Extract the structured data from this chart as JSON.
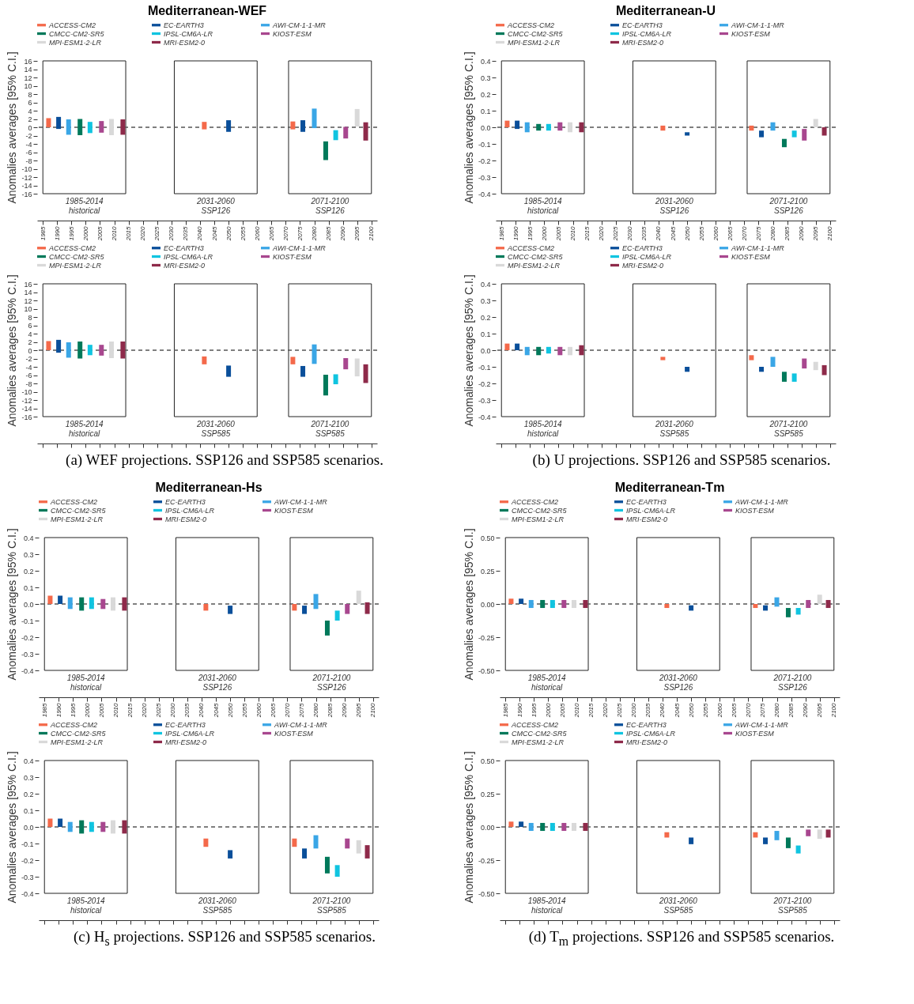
{
  "chart_data": [
    {
      "type": "bar",
      "title": "Mediterranean-WEF",
      "ylabel": "Anomalies averages [95% C.I.]",
      "xlim": [
        1983,
        2102
      ],
      "xticks": [
        1985,
        1990,
        1995,
        2000,
        2005,
        2010,
        2015,
        2020,
        2025,
        2030,
        2035,
        2040,
        2045,
        2050,
        2055,
        2060,
        2065,
        2070,
        2075,
        2080,
        2085,
        2090,
        2095,
        2100
      ],
      "ylim": [
        -16,
        16
      ],
      "yticks": [
        -16,
        -14,
        -12,
        -10,
        -8,
        -6,
        -4,
        -2,
        0,
        2,
        4,
        6,
        8,
        10,
        12,
        14,
        16
      ],
      "legend": "top",
      "bands": [
        {
          "axis": "x",
          "from": 1985,
          "to": 2014,
          "label": "1985-2014\nhistorical"
        },
        {
          "axis": "x",
          "from": 2031,
          "to": 2060,
          "label": "2031-2060\nSSP126"
        },
        {
          "axis": "x",
          "from": 2071,
          "to": 2100,
          "label": "2071-2100\nSSP126"
        }
      ],
      "ref_lines": [
        {
          "axis": "y",
          "value": 0,
          "line_style": "dashed"
        }
      ],
      "series": [
        {
          "name": "ACCESS-CM2",
          "color": "#f4694a",
          "x": [
            1987,
            2041.5,
            2072.5
          ],
          "base": [
            0,
            -0.5,
            -0.5
          ],
          "values": [
            2.2,
            1.8,
            1.9
          ]
        },
        {
          "name": "EC-EARTH3",
          "color": "#0a4f9a",
          "x": [
            1990.5,
            2050,
            2076
          ],
          "base": [
            -0.4,
            -1.1,
            -1.1
          ],
          "values": [
            2.9,
            2.8,
            2.8
          ]
        },
        {
          "name": "AWI-CM-1-1-MR",
          "color": "#3aa6e6",
          "x": [
            1994,
            2080
          ],
          "base": [
            -1.8,
            -0.2
          ],
          "values": [
            3.7,
            4.7
          ]
        },
        {
          "name": "CMCC-CM2-SR5",
          "color": "#00795a",
          "x": [
            1998,
            2084
          ],
          "base": [
            -1.9,
            -7.9
          ],
          "values": [
            3.9,
            4.5
          ]
        },
        {
          "name": "IPSL-CM6A-LR",
          "color": "#10c4e0",
          "x": [
            2001.5,
            2087.5
          ],
          "base": [
            -1.4,
            -3.1
          ],
          "values": [
            2.7,
            2.4
          ]
        },
        {
          "name": "KIOST-ESM",
          "color": "#a8478f",
          "x": [
            2005.5,
            2091
          ],
          "base": [
            -1.3,
            -2.7
          ],
          "values": [
            2.8,
            2.8
          ]
        },
        {
          "name": "MPI-ESM1-2-LR",
          "color": "#d9d9d9",
          "x": [
            2009,
            2095
          ],
          "base": [
            -1.9,
            0.2
          ],
          "values": [
            3.9,
            4.2
          ]
        },
        {
          "name": "MRI-ESM2-0",
          "color": "#8e2a4a",
          "x": [
            2013,
            2098
          ],
          "base": [
            -1.8,
            -3.2
          ],
          "values": [
            3.7,
            4.4
          ]
        }
      ]
    },
    {
      "type": "bar",
      "ylabel": "Anomalies averages [95% C.I.]",
      "xlim": [
        1983,
        2102
      ],
      "xticks": [
        1985,
        1990,
        1995,
        2000,
        2005,
        2010,
        2015,
        2020,
        2025,
        2030,
        2035,
        2040,
        2045,
        2050,
        2055,
        2060,
        2065,
        2070,
        2075,
        2080,
        2085,
        2090,
        2095,
        2100
      ],
      "ylim": [
        -16,
        16
      ],
      "yticks": [
        -16,
        -14,
        -12,
        -10,
        -8,
        -6,
        -4,
        -2,
        0,
        2,
        4,
        6,
        8,
        10,
        12,
        14,
        16
      ],
      "legend": "top",
      "tick_labels": "y",
      "annotations": [
        "(a) WEF projections. SSP126 and SSP585 scenarios."
      ],
      "bands": [
        {
          "axis": "x",
          "from": 1985,
          "to": 2014,
          "label": "1985-2014\nhistorical"
        },
        {
          "axis": "x",
          "from": 2031,
          "to": 2060,
          "label": "2031-2060\nSSP585"
        },
        {
          "axis": "x",
          "from": 2071,
          "to": 2100,
          "label": "2071-2100\nSSP585"
        }
      ],
      "ref_lines": [
        {
          "axis": "y",
          "value": 0,
          "line_style": "dashed"
        }
      ],
      "series": [
        {
          "name": "ACCESS-CM2",
          "color": "#f4694a",
          "x": [
            1987,
            2041.5,
            2072.5
          ],
          "base": [
            0,
            -3.4,
            -3.4
          ],
          "values": [
            2.2,
            1.9,
            1.8
          ]
        },
        {
          "name": "EC-EARTH3",
          "color": "#0a4f9a",
          "x": [
            1990.5,
            2050,
            2076
          ],
          "base": [
            -0.6,
            -6.4,
            -6.4
          ],
          "values": [
            3.1,
            2.7,
            2.6
          ]
        },
        {
          "name": "AWI-CM-1-1-MR",
          "color": "#3aa6e6",
          "x": [
            1994,
            2080
          ],
          "base": [
            -1.8,
            -3.3
          ],
          "values": [
            3.7,
            4.7
          ]
        },
        {
          "name": "CMCC-CM2-SR5",
          "color": "#00795a",
          "x": [
            1998,
            2084
          ],
          "base": [
            -2,
            -10.9
          ],
          "values": [
            4.1,
            5
          ]
        },
        {
          "name": "IPSL-CM6A-LR",
          "color": "#10c4e0",
          "x": [
            2001.5,
            2087.5
          ],
          "base": [
            -1.2,
            -8.2
          ],
          "values": [
            2.5,
            2.4
          ]
        },
        {
          "name": "KIOST-ESM",
          "color": "#a8478f",
          "x": [
            2005.5,
            2091
          ],
          "base": [
            -1.3,
            -4.6
          ],
          "values": [
            2.6,
            2.7
          ]
        },
        {
          "name": "MPI-ESM1-2-LR",
          "color": "#d9d9d9",
          "x": [
            2009,
            2095
          ],
          "base": [
            -1.9,
            -6.3
          ],
          "values": [
            4,
            4.3
          ]
        },
        {
          "name": "MRI-ESM2-0",
          "color": "#8e2a4a",
          "x": [
            2013,
            2098
          ],
          "base": [
            -2,
            -7.9
          ],
          "values": [
            4.1,
            4.5
          ]
        }
      ]
    },
    {
      "type": "bar",
      "title": "Mediterranean-U",
      "ylabel": "Anomalies averages [95% C.I.]",
      "xlim": [
        1983,
        2102
      ],
      "xticks": [
        1985,
        1990,
        1995,
        2000,
        2005,
        2010,
        2015,
        2020,
        2025,
        2030,
        2035,
        2040,
        2045,
        2050,
        2055,
        2060,
        2065,
        2070,
        2075,
        2080,
        2085,
        2090,
        2095,
        2100
      ],
      "ylim": [
        -0.4,
        0.4
      ],
      "yticks": [
        -0.4,
        -0.3,
        -0.2,
        -0.1,
        {
          "value": 0,
          "label": "0.0"
        },
        0.1,
        0.2,
        0.3,
        0.4
      ],
      "legend": "top",
      "bands": [
        {
          "axis": "x",
          "from": 1985,
          "to": 2014,
          "label": "1985-2014\nhistorical"
        },
        {
          "axis": "x",
          "from": 2031,
          "to": 2060,
          "label": "2031-2060\nSSP126"
        },
        {
          "axis": "x",
          "from": 2071,
          "to": 2100,
          "label": "2071-2100\nSSP126"
        }
      ],
      "ref_lines": [
        {
          "axis": "y",
          "value": 0,
          "line_style": "dashed"
        }
      ],
      "series": [
        {
          "name": "ACCESS-CM2",
          "color": "#f4694a",
          "x": [
            1987,
            2041.5,
            2072.5
          ],
          "base": [
            0,
            -0.02,
            -0.02
          ],
          "values": [
            0.04,
            0.03,
            0.03
          ]
        },
        {
          "name": "EC-EARTH3",
          "color": "#0a4f9a",
          "x": [
            1990.5,
            2050,
            2076
          ],
          "base": [
            -0.01,
            -0.05,
            -0.06
          ],
          "values": [
            0.05,
            0.02,
            0.04
          ]
        },
        {
          "name": "AWI-CM-1-1-MR",
          "color": "#3aa6e6",
          "x": [
            1994,
            2080
          ],
          "base": [
            -0.03,
            -0.02
          ],
          "values": [
            0.06,
            0.05
          ]
        },
        {
          "name": "CMCC-CM2-SR5",
          "color": "#00795a",
          "x": [
            1998,
            2084
          ],
          "base": [
            -0.02,
            -0.12
          ],
          "values": [
            0.04,
            0.05
          ]
        },
        {
          "name": "IPSL-CM6A-LR",
          "color": "#10c4e0",
          "x": [
            2001.5,
            2087.5
          ],
          "base": [
            -0.02,
            -0.06
          ],
          "values": [
            0.04,
            0.04
          ]
        },
        {
          "name": "KIOST-ESM",
          "color": "#a8478f",
          "x": [
            2005.5,
            2091
          ],
          "base": [
            -0.02,
            -0.08
          ],
          "values": [
            0.05,
            0.07
          ]
        },
        {
          "name": "MPI-ESM1-2-LR",
          "color": "#d9d9d9",
          "x": [
            2009,
            2095
          ],
          "base": [
            -0.03,
            0
          ],
          "values": [
            0.06,
            0.05
          ]
        },
        {
          "name": "MRI-ESM2-0",
          "color": "#8e2a4a",
          "x": [
            2013,
            2098
          ],
          "base": [
            -0.03,
            -0.05
          ],
          "values": [
            0.06,
            0.05
          ]
        }
      ]
    },
    {
      "type": "bar",
      "ylabel": "Anomalies averages [95% C.I.]",
      "xlim": [
        1983,
        2102
      ],
      "xticks": [
        1985,
        1990,
        1995,
        2000,
        2005,
        2010,
        2015,
        2020,
        2025,
        2030,
        2035,
        2040,
        2045,
        2050,
        2055,
        2060,
        2065,
        2070,
        2075,
        2080,
        2085,
        2090,
        2095,
        2100
      ],
      "ylim": [
        -0.4,
        0.4
      ],
      "yticks": [
        -0.4,
        -0.3,
        -0.2,
        -0.1,
        {
          "value": 0,
          "label": "0.0"
        },
        0.1,
        0.2,
        0.3,
        0.4
      ],
      "legend": "top",
      "tick_labels": "y",
      "annotations": [
        "(b) U projections. SSP126 and SSP585 scenarios."
      ],
      "bands": [
        {
          "axis": "x",
          "from": 1985,
          "to": 2014,
          "label": "1985-2014\nhistorical"
        },
        {
          "axis": "x",
          "from": 2031,
          "to": 2060,
          "label": "2031-2060\nSSP585"
        },
        {
          "axis": "x",
          "from": 2071,
          "to": 2100,
          "label": "2071-2100\nSSP585"
        }
      ],
      "ref_lines": [
        {
          "axis": "y",
          "value": 0,
          "line_style": "dashed"
        }
      ],
      "series": [
        {
          "name": "ACCESS-CM2",
          "color": "#f4694a",
          "x": [
            1987,
            2041.5,
            2072.5
          ],
          "base": [
            0,
            -0.06,
            -0.06
          ],
          "values": [
            0.04,
            0.02,
            0.03
          ]
        },
        {
          "name": "EC-EARTH3",
          "color": "#0a4f9a",
          "x": [
            1990.5,
            2050,
            2076
          ],
          "base": [
            0,
            -0.13,
            -0.13
          ],
          "values": [
            0.04,
            0.03,
            0.03
          ]
        },
        {
          "name": "AWI-CM-1-1-MR",
          "color": "#3aa6e6",
          "x": [
            1994,
            2080
          ],
          "base": [
            -0.03,
            -0.1
          ],
          "values": [
            0.05,
            0.06
          ]
        },
        {
          "name": "CMCC-CM2-SR5",
          "color": "#00795a",
          "x": [
            1998,
            2084
          ],
          "base": [
            -0.03,
            -0.19
          ],
          "values": [
            0.05,
            0.06
          ]
        },
        {
          "name": "IPSL-CM6A-LR",
          "color": "#10c4e0",
          "x": [
            2001.5,
            2087.5
          ],
          "base": [
            -0.02,
            -0.19
          ],
          "values": [
            0.04,
            0.05
          ]
        },
        {
          "name": "KIOST-ESM",
          "color": "#a8478f",
          "x": [
            2005.5,
            2091
          ],
          "base": [
            -0.03,
            -0.11
          ],
          "values": [
            0.05,
            0.06
          ]
        },
        {
          "name": "MPI-ESM1-2-LR",
          "color": "#d9d9d9",
          "x": [
            2009,
            2095
          ],
          "base": [
            -0.03,
            -0.12
          ],
          "values": [
            0.05,
            0.05
          ]
        },
        {
          "name": "MRI-ESM2-0",
          "color": "#8e2a4a",
          "x": [
            2013,
            2098
          ],
          "base": [
            -0.03,
            -0.15
          ],
          "values": [
            0.06,
            0.06
          ]
        }
      ]
    },
    {
      "type": "bar",
      "title": "Mediterranean-Hs",
      "ylabel": "Anomalies averages [95% C.I.]",
      "xlim": [
        1983,
        2102
      ],
      "xticks": [
        1985,
        1990,
        1995,
        2000,
        2005,
        2010,
        2015,
        2020,
        2025,
        2030,
        2035,
        2040,
        2045,
        2050,
        2055,
        2060,
        2065,
        2070,
        2075,
        2080,
        2085,
        2090,
        2095,
        2100
      ],
      "ylim": [
        -0.4,
        0.4
      ],
      "yticks": [
        -0.4,
        -0.3,
        -0.2,
        -0.1,
        {
          "value": 0,
          "label": "0.0"
        },
        0.1,
        0.2,
        0.3,
        0.4
      ],
      "legend": "top",
      "bands": [
        {
          "axis": "x",
          "from": 1985,
          "to": 2014,
          "label": "1985-2014\nhistorical"
        },
        {
          "axis": "x",
          "from": 2031,
          "to": 2060,
          "label": "2031-2060\nSSP126"
        },
        {
          "axis": "x",
          "from": 2071,
          "to": 2100,
          "label": "2071-2100\nSSP126"
        }
      ],
      "ref_lines": [
        {
          "axis": "y",
          "value": 0,
          "line_style": "dashed"
        }
      ],
      "series": [
        {
          "name": "ACCESS-CM2",
          "color": "#f4694a",
          "x": [
            1987,
            2041.5,
            2072.5
          ],
          "base": [
            0,
            -0.04,
            -0.04
          ],
          "values": [
            0.05,
            0.04,
            0.04
          ]
        },
        {
          "name": "EC-EARTH3",
          "color": "#0a4f9a",
          "x": [
            1990.5,
            2050,
            2076
          ],
          "base": [
            0,
            -0.06,
            -0.06
          ],
          "values": [
            0.05,
            0.05,
            0.05
          ]
        },
        {
          "name": "AWI-CM-1-1-MR",
          "color": "#3aa6e6",
          "x": [
            1994,
            2080
          ],
          "base": [
            -0.03,
            -0.03
          ],
          "values": [
            0.07,
            0.09
          ]
        },
        {
          "name": "CMCC-CM2-SR5",
          "color": "#00795a",
          "x": [
            1998,
            2084
          ],
          "base": [
            -0.04,
            -0.19
          ],
          "values": [
            0.08,
            0.09
          ]
        },
        {
          "name": "IPSL-CM6A-LR",
          "color": "#10c4e0",
          "x": [
            2001.5,
            2087.5
          ],
          "base": [
            -0.03,
            -0.1
          ],
          "values": [
            0.07,
            0.06
          ]
        },
        {
          "name": "KIOST-ESM",
          "color": "#a8478f",
          "x": [
            2005.5,
            2091
          ],
          "base": [
            -0.03,
            -0.06
          ],
          "values": [
            0.06,
            0.06
          ]
        },
        {
          "name": "MPI-ESM1-2-LR",
          "color": "#d9d9d9",
          "x": [
            2009,
            2095
          ],
          "base": [
            -0.04,
            0
          ],
          "values": [
            0.08,
            0.08
          ]
        },
        {
          "name": "MRI-ESM2-0",
          "color": "#8e2a4a",
          "x": [
            2013,
            2098
          ],
          "base": [
            -0.04,
            -0.06
          ],
          "values": [
            0.08,
            0.07
          ]
        }
      ]
    },
    {
      "type": "bar",
      "ylabel": "Anomalies averages [95% C.I.]",
      "xlim": [
        1983,
        2102
      ],
      "xticks": [
        1985,
        1990,
        1995,
        2000,
        2005,
        2010,
        2015,
        2020,
        2025,
        2030,
        2035,
        2040,
        2045,
        2050,
        2055,
        2060,
        2065,
        2070,
        2075,
        2080,
        2085,
        2090,
        2095,
        2100
      ],
      "ylim": [
        -0.4,
        0.4
      ],
      "yticks": [
        -0.4,
        -0.3,
        -0.2,
        -0.1,
        {
          "value": 0,
          "label": "0.0"
        },
        0.1,
        0.2,
        0.3,
        0.4
      ],
      "legend": "top",
      "tick_labels": "y",
      "annotations": [
        "(c) H$_{s}$ projections. SSP126 and SSP585 scenarios."
      ],
      "bands": [
        {
          "axis": "x",
          "from": 1985,
          "to": 2014,
          "label": "1985-2014\nhistorical"
        },
        {
          "axis": "x",
          "from": 2031,
          "to": 2060,
          "label": "2031-2060\nSSP585"
        },
        {
          "axis": "x",
          "from": 2071,
          "to": 2100,
          "label": "2071-2100\nSSP585"
        }
      ],
      "ref_lines": [
        {
          "axis": "y",
          "value": 0,
          "line_style": "dashed"
        }
      ],
      "series": [
        {
          "name": "ACCESS-CM2",
          "color": "#f4694a",
          "x": [
            1987,
            2041.5,
            2072.5
          ],
          "base": [
            0,
            -0.12,
            -0.12
          ],
          "values": [
            0.05,
            0.05,
            0.05
          ]
        },
        {
          "name": "EC-EARTH3",
          "color": "#0a4f9a",
          "x": [
            1990.5,
            2050,
            2076
          ],
          "base": [
            0,
            -0.19,
            -0.19
          ],
          "values": [
            0.05,
            0.05,
            0.06
          ]
        },
        {
          "name": "AWI-CM-1-1-MR",
          "color": "#3aa6e6",
          "x": [
            1994,
            2080
          ],
          "base": [
            -0.03,
            -0.13
          ],
          "values": [
            0.06,
            0.08
          ]
        },
        {
          "name": "CMCC-CM2-SR5",
          "color": "#00795a",
          "x": [
            1998,
            2084
          ],
          "base": [
            -0.04,
            -0.28
          ],
          "values": [
            0.08,
            0.1
          ]
        },
        {
          "name": "IPSL-CM6A-LR",
          "color": "#10c4e0",
          "x": [
            2001.5,
            2087.5
          ],
          "base": [
            -0.03,
            -0.3
          ],
          "values": [
            0.06,
            0.07
          ]
        },
        {
          "name": "KIOST-ESM",
          "color": "#a8478f",
          "x": [
            2005.5,
            2091
          ],
          "base": [
            -0.03,
            -0.13
          ],
          "values": [
            0.06,
            0.06
          ]
        },
        {
          "name": "MPI-ESM1-2-LR",
          "color": "#d9d9d9",
          "x": [
            2009,
            2095
          ],
          "base": [
            -0.04,
            -0.16
          ],
          "values": [
            0.08,
            0.08
          ]
        },
        {
          "name": "MRI-ESM2-0",
          "color": "#8e2a4a",
          "x": [
            2013,
            2098
          ],
          "base": [
            -0.04,
            -0.19
          ],
          "values": [
            0.08,
            0.08
          ]
        }
      ]
    },
    {
      "type": "bar",
      "title": "Mediterranean-Tm",
      "ylabel": "Anomalies averages [95% C.I.]",
      "xlim": [
        1983,
        2102
      ],
      "xticks": [
        1985,
        1990,
        1995,
        2000,
        2005,
        2010,
        2015,
        2020,
        2025,
        2030,
        2035,
        2040,
        2045,
        2050,
        2055,
        2060,
        2065,
        2070,
        2075,
        2080,
        2085,
        2090,
        2095,
        2100
      ],
      "ylim": [
        -0.5,
        0.5
      ],
      "yticks": [
        {
          "value": -0.5,
          "label": "-0.50"
        },
        -0.25,
        {
          "value": 0,
          "label": "0.00"
        },
        0.25,
        {
          "value": 0.5,
          "label": "0.50"
        }
      ],
      "legend": "top",
      "bands": [
        {
          "axis": "x",
          "from": 1985,
          "to": 2014,
          "label": "1985-2014\nhistorical"
        },
        {
          "axis": "x",
          "from": 2031,
          "to": 2060,
          "label": "2031-2060\nSSP126"
        },
        {
          "axis": "x",
          "from": 2071,
          "to": 2100,
          "label": "2071-2100\nSSP126"
        }
      ],
      "ref_lines": [
        {
          "axis": "y",
          "value": 0,
          "line_style": "dashed"
        }
      ],
      "series": [
        {
          "name": "ACCESS-CM2",
          "color": "#f4694a",
          "x": [
            1987,
            2041.5,
            2072.5
          ],
          "base": [
            0,
            -0.03,
            -0.03
          ],
          "values": [
            0.04,
            0.03,
            0.03
          ]
        },
        {
          "name": "EC-EARTH3",
          "color": "#0a4f9a",
          "x": [
            1990.5,
            2050,
            2076
          ],
          "base": [
            0,
            -0.05,
            -0.05
          ],
          "values": [
            0.04,
            0.04,
            0.04
          ]
        },
        {
          "name": "AWI-CM-1-1-MR",
          "color": "#3aa6e6",
          "x": [
            1994,
            2080
          ],
          "base": [
            -0.03,
            -0.02
          ],
          "values": [
            0.06,
            0.07
          ]
        },
        {
          "name": "CMCC-CM2-SR5",
          "color": "#00795a",
          "x": [
            1998,
            2084
          ],
          "base": [
            -0.03,
            -0.1
          ],
          "values": [
            0.06,
            0.07
          ]
        },
        {
          "name": "IPSL-CM6A-LR",
          "color": "#10c4e0",
          "x": [
            2001.5,
            2087.5
          ],
          "base": [
            -0.03,
            -0.08
          ],
          "values": [
            0.06,
            0.05
          ]
        },
        {
          "name": "KIOST-ESM",
          "color": "#a8478f",
          "x": [
            2005.5,
            2091
          ],
          "base": [
            -0.03,
            -0.03
          ],
          "values": [
            0.06,
            0.06
          ]
        },
        {
          "name": "MPI-ESM1-2-LR",
          "color": "#d9d9d9",
          "x": [
            2009,
            2095
          ],
          "base": [
            -0.03,
            0
          ],
          "values": [
            0.06,
            0.07
          ]
        },
        {
          "name": "MRI-ESM2-0",
          "color": "#8e2a4a",
          "x": [
            2013,
            2098
          ],
          "base": [
            -0.03,
            -0.03
          ],
          "values": [
            0.06,
            0.06
          ]
        }
      ]
    },
    {
      "type": "bar",
      "ylabel": "Anomalies averages [95% C.I.]",
      "xlim": [
        1983,
        2102
      ],
      "xticks": [
        1985,
        1990,
        1995,
        2000,
        2005,
        2010,
        2015,
        2020,
        2025,
        2030,
        2035,
        2040,
        2045,
        2050,
        2055,
        2060,
        2065,
        2070,
        2075,
        2080,
        2085,
        2090,
        2095,
        2100
      ],
      "ylim": [
        -0.5,
        0.5
      ],
      "yticks": [
        {
          "value": -0.5,
          "label": "-0.50"
        },
        -0.25,
        {
          "value": 0,
          "label": "0.00"
        },
        0.25,
        {
          "value": 0.5,
          "label": "0.50"
        }
      ],
      "legend": "top",
      "tick_labels": "y",
      "annotations": [
        "(d) T$_{m}$ projections. SSP126 and SSP585 scenarios."
      ],
      "bands": [
        {
          "axis": "x",
          "from": 1985,
          "to": 2014,
          "label": "1985-2014\nhistorical"
        },
        {
          "axis": "x",
          "from": 2031,
          "to": 2060,
          "label": "2031-2060\nSSP585"
        },
        {
          "axis": "x",
          "from": 2071,
          "to": 2100,
          "label": "2071-2100\nSSP585"
        }
      ],
      "ref_lines": [
        {
          "axis": "y",
          "value": 0,
          "line_style": "dashed"
        }
      ],
      "series": [
        {
          "name": "ACCESS-CM2",
          "color": "#f4694a",
          "x": [
            1987,
            2041.5,
            2072.5
          ],
          "base": [
            0,
            -0.08,
            -0.08
          ],
          "values": [
            0.04,
            0.04,
            0.04
          ]
        },
        {
          "name": "EC-EARTH3",
          "color": "#0a4f9a",
          "x": [
            1990.5,
            2050,
            2076
          ],
          "base": [
            0,
            -0.13,
            -0.13
          ],
          "values": [
            0.04,
            0.05,
            0.05
          ]
        },
        {
          "name": "AWI-CM-1-1-MR",
          "color": "#3aa6e6",
          "x": [
            1994,
            2080
          ],
          "base": [
            -0.03,
            -0.1
          ],
          "values": [
            0.06,
            0.07
          ]
        },
        {
          "name": "CMCC-CM2-SR5",
          "color": "#00795a",
          "x": [
            1998,
            2084
          ],
          "base": [
            -0.03,
            -0.16
          ],
          "values": [
            0.06,
            0.08
          ]
        },
        {
          "name": "IPSL-CM6A-LR",
          "color": "#10c4e0",
          "x": [
            2001.5,
            2087.5
          ],
          "base": [
            -0.03,
            -0.2
          ],
          "values": [
            0.06,
            0.06
          ]
        },
        {
          "name": "KIOST-ESM",
          "color": "#a8478f",
          "x": [
            2005.5,
            2091
          ],
          "base": [
            -0.03,
            -0.07
          ],
          "values": [
            0.06,
            0.05
          ]
        },
        {
          "name": "MPI-ESM1-2-LR",
          "color": "#d9d9d9",
          "x": [
            2009,
            2095
          ],
          "base": [
            -0.03,
            -0.09
          ],
          "values": [
            0.06,
            0.07
          ]
        },
        {
          "name": "MRI-ESM2-0",
          "color": "#8e2a4a",
          "x": [
            2013,
            2098
          ],
          "base": [
            -0.03,
            -0.08
          ],
          "values": [
            0.06,
            0.06
          ]
        }
      ]
    }
  ]
}
